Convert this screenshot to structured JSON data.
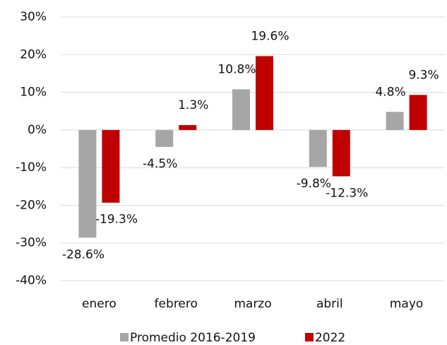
{
  "chart_data": {
    "type": "bar",
    "categories": [
      "enero",
      "febrero",
      "marzo",
      "abril",
      "mayo"
    ],
    "series": [
      {
        "name": "Promedio 2016-2019",
        "color": "#a6a6a6",
        "values": [
          -28.6,
          -4.5,
          10.8,
          -9.8,
          4.8
        ],
        "value_labels": [
          "-28.6%",
          "-4.5%",
          "10.8%",
          "-9.8%",
          "4.8%"
        ]
      },
      {
        "name": "2022",
        "color": "#c00000",
        "values": [
          -19.3,
          1.3,
          19.6,
          -12.3,
          9.3
        ],
        "value_labels": [
          "-19.3%",
          "1.3%",
          "19.6%",
          "-12.3%",
          "9.3%"
        ]
      }
    ],
    "ylim": [
      -40,
      30
    ],
    "yticks": [
      {
        "value": -40,
        "label": "-40%"
      },
      {
        "value": -30,
        "label": "-30%"
      },
      {
        "value": -20,
        "label": "-20%"
      },
      {
        "value": -10,
        "label": "-10%"
      },
      {
        "value": 0,
        "label": "0%"
      },
      {
        "value": 10,
        "label": "10%"
      },
      {
        "value": 20,
        "label": "20%"
      },
      {
        "value": 30,
        "label": "30%"
      }
    ],
    "grid": true,
    "legend": "bottom"
  }
}
